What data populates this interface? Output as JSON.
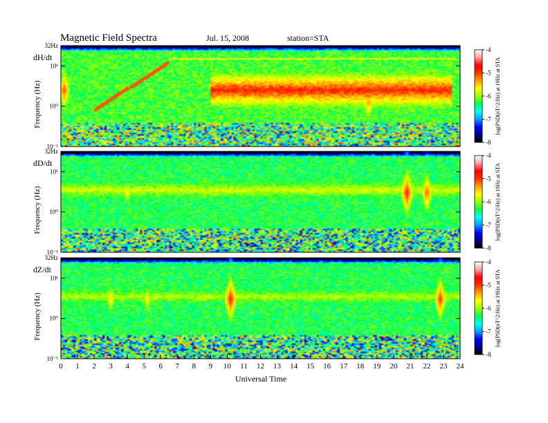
{
  "title": "Magnetic Field Spectra",
  "date": "Jul. 15, 2008",
  "station_label": "station=STA",
  "chart_data": {
    "type": "heatmap",
    "xlabel": "Universal Time",
    "x_ticks": [
      "0",
      "1",
      "2",
      "3",
      "4",
      "5",
      "6",
      "7",
      "8",
      "9",
      "10",
      "11",
      "12",
      "13",
      "14",
      "15",
      "16",
      "17",
      "18",
      "19",
      "20",
      "21",
      "22",
      "23",
      "24"
    ],
    "xlim": [
      0,
      24
    ],
    "y_scale": "log",
    "ylim_hz": [
      0.1,
      32
    ],
    "colorbar": {
      "label": "log(PSD(nT^2/Hz) at 19Hz at STA",
      "ticks": [
        "-4",
        "-5",
        "-6",
        "-7",
        "-8"
      ],
      "range": [
        -8,
        -4
      ],
      "colors": [
        "#000000",
        "#00008b",
        "#0000ff",
        "#00a0ff",
        "#00ffff",
        "#00ff50",
        "#a0ff00",
        "#ffff00",
        "#ffa000",
        "#ff3000",
        "#ff0000",
        "#ffa0a0",
        "#ffffff"
      ]
    },
    "panels": [
      {
        "name": "dH/dt",
        "ylabel": "Frequency (Hz)",
        "y_ticks": [
          "32Hz",
          "10¹",
          "10⁰",
          "10⁻¹"
        ],
        "background_level": -6.2,
        "features": [
          {
            "kind": "band",
            "from_ut": 9,
            "to_ut": 23.5,
            "freq_hz": 2.5,
            "level": -4.9
          },
          {
            "kind": "rising_tone",
            "from_ut": 2.0,
            "to_ut": 6.5,
            "freq_start_hz": 0.8,
            "freq_end_hz": 12
          },
          {
            "kind": "cutoff_line",
            "from_ut": 6.5,
            "to_ut": 23.8,
            "freq_hz": 15
          },
          {
            "kind": "burst",
            "ut": 0.2,
            "freq_hz": 2.5,
            "level": -5.0
          },
          {
            "kind": "burst",
            "ut": 18.5,
            "freq_hz": 1.2,
            "level": -5.2
          }
        ]
      },
      {
        "name": "dD/dt",
        "ylabel": "Frequency (Hz)",
        "y_ticks": [
          "32Hz",
          "10¹",
          "10⁰",
          "10⁻¹"
        ],
        "background_level": -6.3,
        "features": [
          {
            "kind": "band",
            "from_ut": 0,
            "to_ut": 24,
            "freq_hz": 3.5,
            "level": -5.8
          },
          {
            "kind": "burst",
            "ut": 20.8,
            "freq_hz": 3,
            "level": -4.8
          },
          {
            "kind": "burst",
            "ut": 22.0,
            "freq_hz": 3,
            "level": -5.0
          },
          {
            "kind": "burst",
            "ut": 4.0,
            "freq_hz": 3,
            "level": -5.5
          }
        ]
      },
      {
        "name": "dZ/dt",
        "ylabel": "Frequency (Hz)",
        "y_ticks": [
          "32Hz",
          "10¹",
          "10⁰",
          "10⁻¹"
        ],
        "background_level": -6.3,
        "features": [
          {
            "kind": "band",
            "from_ut": 0,
            "to_ut": 24,
            "freq_hz": 3.5,
            "level": -5.9
          },
          {
            "kind": "burst",
            "ut": 10.2,
            "freq_hz": 3,
            "level": -4.8
          },
          {
            "kind": "burst",
            "ut": 22.8,
            "freq_hz": 3,
            "level": -4.9
          },
          {
            "kind": "burst",
            "ut": 3.0,
            "freq_hz": 3,
            "level": -5.4
          },
          {
            "kind": "burst",
            "ut": 5.2,
            "freq_hz": 3,
            "level": -5.5
          }
        ]
      }
    ]
  }
}
